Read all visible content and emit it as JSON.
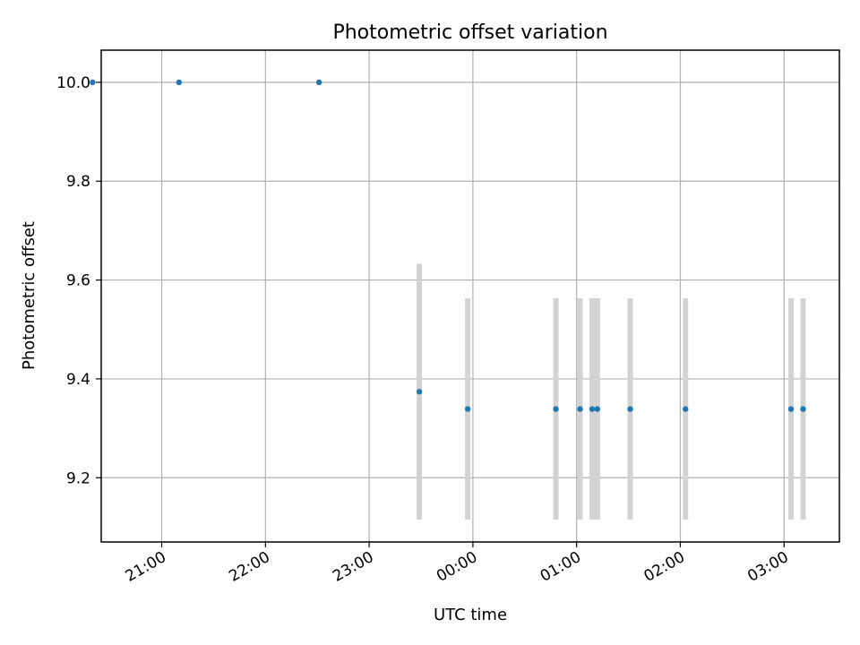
{
  "chart_data": {
    "type": "scatter",
    "title": "Photometric offset variation",
    "xlabel": "UTC time",
    "ylabel": "Photometric offset",
    "x_ticks": [
      "21:00",
      "22:00",
      "23:00",
      "00:00",
      "01:00",
      "02:00",
      "03:00"
    ],
    "y_ticks": [
      "9.2",
      "9.4",
      "9.6",
      "9.8",
      "10.0"
    ],
    "xlim": [
      "20:25",
      "03:32"
    ],
    "ylim": [
      9.07,
      10.065
    ],
    "grid": true,
    "legend": "none",
    "colors": {
      "point": "#1f77b4",
      "errorbar": "#d3d3d3"
    },
    "points": [
      {
        "x": "20:20",
        "y": 10.0
      },
      {
        "x": "21:10",
        "y": 10.0
      },
      {
        "x": "22:31",
        "y": 10.0
      },
      {
        "x": "23:29",
        "y": 9.374,
        "y_low": 9.115,
        "y_high": 9.633
      },
      {
        "x": "23:57",
        "y": 9.339,
        "y_low": 9.115,
        "y_high": 9.563
      },
      {
        "x": "00:48",
        "y": 9.339,
        "y_low": 9.115,
        "y_high": 9.563
      },
      {
        "x": "01:02",
        "y": 9.339,
        "y_low": 9.115,
        "y_high": 9.563
      },
      {
        "x": "01:09",
        "y": 9.339,
        "y_low": 9.115,
        "y_high": 9.563
      },
      {
        "x": "01:12",
        "y": 9.339,
        "y_low": 9.115,
        "y_high": 9.563
      },
      {
        "x": "01:31",
        "y": 9.339,
        "y_low": 9.115,
        "y_high": 9.563
      },
      {
        "x": "02:03",
        "y": 9.339,
        "y_low": 9.115,
        "y_high": 9.563
      },
      {
        "x": "03:04",
        "y": 9.339,
        "y_low": 9.115,
        "y_high": 9.563
      },
      {
        "x": "03:11",
        "y": 9.339,
        "y_low": 9.115,
        "y_high": 9.563
      }
    ]
  }
}
